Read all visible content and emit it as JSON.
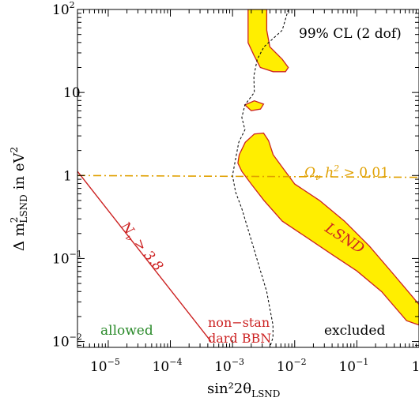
{
  "chart_data": {
    "type": "contour",
    "cl_label": "99% CL (2 dof)",
    "xlabel": "sin²2θ",
    "xlabel_sub": "LSND",
    "ylabel": "Δ m",
    "ylabel_sub": "LSND",
    "ylabel_sup": "2",
    "ylabel_unit": "in eV",
    "ylabel_unit_sup": "2",
    "x_scale": "log",
    "y_scale": "log",
    "xlim": [
      3.2e-06,
      1
    ],
    "ylim": [
      0.0085,
      100
    ],
    "x_ticks": [
      {
        "value": 1e-05,
        "base": "10",
        "exp": "−5"
      },
      {
        "value": 0.0001,
        "base": "10",
        "exp": "−4"
      },
      {
        "value": 0.001,
        "base": "10",
        "exp": "−3"
      },
      {
        "value": 0.01,
        "base": "10",
        "exp": "−2"
      },
      {
        "value": 0.1,
        "base": "10",
        "exp": "−1"
      },
      {
        "value": 1,
        "base": "1",
        "exp": ""
      }
    ],
    "y_ticks": [
      {
        "value": 0.01,
        "base": "10",
        "exp": "−2"
      },
      {
        "value": 0.1,
        "base": "10",
        "exp": "−1"
      },
      {
        "value": 1,
        "base": "1",
        "exp": ""
      },
      {
        "value": 10,
        "base": "10",
        "exp": ""
      },
      {
        "value": 100,
        "base": "10",
        "exp": "2"
      }
    ],
    "regions": {
      "lsnd_label": "LSND",
      "lsnd_color": "#ffee00",
      "lsnd_edge_color": "#cc2222",
      "lsnd_region": {
        "main": [
          [
            0.00128,
            1.78
          ],
          [
            0.0016,
            2.51
          ],
          [
            0.00224,
            3.16
          ],
          [
            0.00316,
            3.24
          ],
          [
            0.0038,
            2.63
          ],
          [
            0.0045,
            1.78
          ],
          [
            0.0063,
            1.26
          ],
          [
            0.01,
            0.79
          ],
          [
            0.0251,
            0.5
          ],
          [
            0.0631,
            0.282
          ],
          [
            0.159,
            0.141
          ],
          [
            0.4,
            0.063
          ],
          [
            1,
            0.028
          ],
          [
            1,
            0.0158
          ],
          [
            0.631,
            0.0178
          ],
          [
            0.251,
            0.0398
          ],
          [
            0.1,
            0.0708
          ],
          [
            0.0398,
            0.112
          ],
          [
            0.0158,
            0.178
          ],
          [
            0.0063,
            0.282
          ],
          [
            0.0032,
            0.5
          ],
          [
            0.002,
            0.79
          ],
          [
            0.00141,
            1.12
          ],
          [
            0.00122,
            1.41
          ]
        ],
        "upper": [
          [
            0.00178,
            100
          ],
          [
            0.00355,
            100
          ],
          [
            0.00355,
            56.2
          ],
          [
            0.00398,
            35.5
          ],
          [
            0.0063,
            25.1
          ],
          [
            0.0079,
            20
          ],
          [
            0.0071,
            17.8
          ],
          [
            0.0045,
            17.8
          ],
          [
            0.0028,
            20
          ],
          [
            0.0022,
            28.2
          ],
          [
            0.00178,
            39.8
          ]
        ],
        "island": [
          [
            0.00158,
            7.08
          ],
          [
            0.00224,
            7.94
          ],
          [
            0.00316,
            7.24
          ],
          [
            0.00282,
            6.31
          ],
          [
            0.002,
            6.03
          ]
        ]
      },
      "bbn_line_label": "N",
      "bbn_line_label_sub": "ν",
      "bbn_line_label_rest": " > 3.8",
      "bbn_line_color": "#cc2222",
      "bbn_line": [
        [
          3.2e-06,
          1.12
        ],
        [
          0.00045,
          0.01
        ]
      ],
      "omega_label": "Ω",
      "omega_label_sub": "ν",
      "omega_label_rest": " h",
      "omega_label_sup": "2",
      "omega_label_tail": " > 0.01",
      "omega_color": "#e0a000",
      "omega_line": [
        [
          3.2e-06,
          1.0
        ],
        [
          1,
          0.95
        ]
      ],
      "excluded_boundary": [
        [
          0.0079,
          100
        ],
        [
          0.0063,
          56.2
        ],
        [
          0.0045,
          44.7
        ],
        [
          0.0032,
          35.5
        ],
        [
          0.0025,
          25.1
        ],
        [
          0.0022,
          15.8
        ],
        [
          0.00224,
          10
        ],
        [
          0.00158,
          7.08
        ],
        [
          0.00141,
          5.01
        ],
        [
          0.00158,
          3.55
        ],
        [
          0.00126,
          2.51
        ],
        [
          0.00112,
          1.58
        ],
        [
          0.001,
          1.0
        ],
        [
          0.00112,
          0.631
        ],
        [
          0.00141,
          0.398
        ],
        [
          0.00178,
          0.224
        ],
        [
          0.00224,
          0.126
        ],
        [
          0.00282,
          0.0708
        ],
        [
          0.00355,
          0.0398
        ],
        [
          0.00398,
          0.0251
        ],
        [
          0.00447,
          0.0158
        ],
        [
          0.00447,
          0.0112
        ],
        [
          0.00398,
          0.0085
        ]
      ]
    },
    "annotations": {
      "allowed": "allowed",
      "allowed_color": "#2a8a2a",
      "nonstandard_1": "non−stan",
      "nonstandard_2": "dard BBN",
      "nonstandard_color": "#cc2222",
      "excluded": "excluded"
    }
  }
}
